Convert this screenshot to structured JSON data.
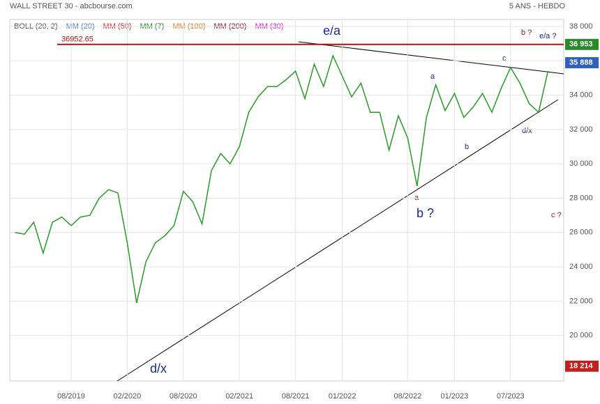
{
  "chart_data": {
    "type": "line",
    "title": "WALL STREET 30 - abcbourse.com",
    "subtitle": "5 ANS - HEBDO",
    "indicators": [
      {
        "label": "BOLL (20, 2)",
        "color": "#555555"
      },
      {
        "label": "MM (20)",
        "color": "#4a7fd4"
      },
      {
        "label": "MM (50)",
        "color": "#e03030"
      },
      {
        "label": "MM (7)",
        "color": "#2a8a2a"
      },
      {
        "label": "MM (100)",
        "color": "#f07a10"
      },
      {
        "label": "MM (200)",
        "color": "#8b1a1a"
      },
      {
        "label": "MM (30)",
        "color": "#e020e0"
      }
    ],
    "categories": [
      null,
      null,
      null,
      null,
      null,
      null,
      "08/2019",
      null,
      null,
      null,
      null,
      null,
      "02/2020",
      null,
      null,
      null,
      null,
      null,
      "08/2020",
      null,
      null,
      null,
      null,
      null,
      "02/2021",
      null,
      null,
      null,
      null,
      null,
      "08/2021",
      null,
      null,
      null,
      null,
      "01/2022",
      null,
      null,
      null,
      null,
      null,
      null,
      "08/2022",
      null,
      null,
      null,
      null,
      "01/2023",
      null,
      null,
      null,
      null,
      null,
      "07/2023",
      null,
      null,
      null,
      null
    ],
    "series": [
      {
        "color": "#2a9a2a",
        "values": [
          26000,
          25900,
          26600,
          24800,
          26600,
          26900,
          26400,
          26900,
          27000,
          28000,
          28500,
          28300,
          25400,
          21900,
          24300,
          25400,
          25800,
          26400,
          28400,
          27800,
          26500,
          29600,
          30600,
          30000,
          31000,
          33000,
          33900,
          34500,
          34500,
          34900,
          35400,
          33800,
          35800,
          34500,
          36300,
          35100,
          33900,
          34700,
          33000,
          33000,
          30800,
          32800,
          31500,
          28700,
          32700,
          34600,
          33100,
          34100,
          32700,
          33300,
          34100,
          33000,
          34400,
          35600,
          34700,
          33500,
          33000,
          35400
        ]
      }
    ],
    "annotations": [
      "e/a",
      "b ?",
      "e/a ?",
      "a",
      "c",
      "b",
      "d/x",
      "a",
      "b ?",
      "c ?",
      "d/x"
    ],
    "level": 36952.65,
    "badges": [
      {
        "value": 36953,
        "label": "36 953",
        "color": "#2a8a2a"
      },
      {
        "value": 35888,
        "label": "35 888",
        "color": "#3060c0"
      },
      {
        "value": 18214,
        "label": "18 214",
        "color": "#c02020"
      }
    ],
    "ylim": [
      17350,
      38405
    ],
    "yticks": [
      {
        "value": 20000,
        "label": "20 000"
      },
      {
        "value": 22000,
        "label": "22 000"
      },
      {
        "value": 24000,
        "label": "24 000"
      },
      {
        "value": 26000,
        "label": "26 000"
      },
      {
        "value": 28000,
        "label": "28 000"
      },
      {
        "value": 30000,
        "label": "30 000"
      },
      {
        "value": 32000,
        "label": "32 000"
      },
      {
        "value": 34000,
        "label": "34 000"
      },
      {
        "value": 36000,
        "label": "36 000"
      },
      {
        "value": 38000,
        "label": "38 000"
      }
    ],
    "grid": true
  }
}
